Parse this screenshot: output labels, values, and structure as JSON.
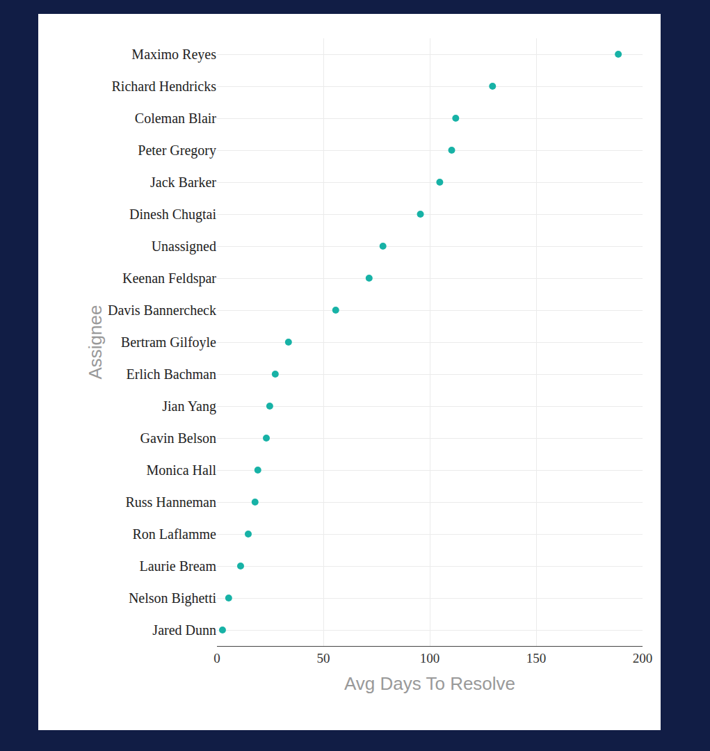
{
  "chart_data": {
    "type": "scatter",
    "orientation": "horizontal",
    "x_label": "Avg Days To Resolve",
    "y_label": "Assignee",
    "categories": [
      "Maximo Reyes",
      "Richard Hendricks",
      "Coleman Blair",
      "Peter Gregory",
      "Jack Barker",
      "Dinesh Chugtai",
      "Unassigned",
      "Keenan Feldspar",
      "Davis Bannercheck",
      "Bertram Gilfoyle",
      "Erlich Bachman",
      "Jian Yang",
      "Gavin Belson",
      "Monica Hall",
      "Russ Hanneman",
      "Ron Laflamme",
      "Laurie Bream",
      "Nelson Bighetti",
      "Jared Dunn"
    ],
    "values": [
      188.6,
      129.5,
      112.2,
      110.3,
      104.7,
      95.6,
      78,
      71.5,
      55.8,
      33.6,
      27.4,
      24.8,
      23.2,
      19.2,
      17.9,
      14.7,
      11.1,
      5.5,
      2.6
    ],
    "color": "#17b2a6",
    "marker": "circle",
    "xlim": [
      0,
      200
    ],
    "xticks": [
      0,
      50,
      100,
      150,
      200
    ],
    "grid": true
  }
}
